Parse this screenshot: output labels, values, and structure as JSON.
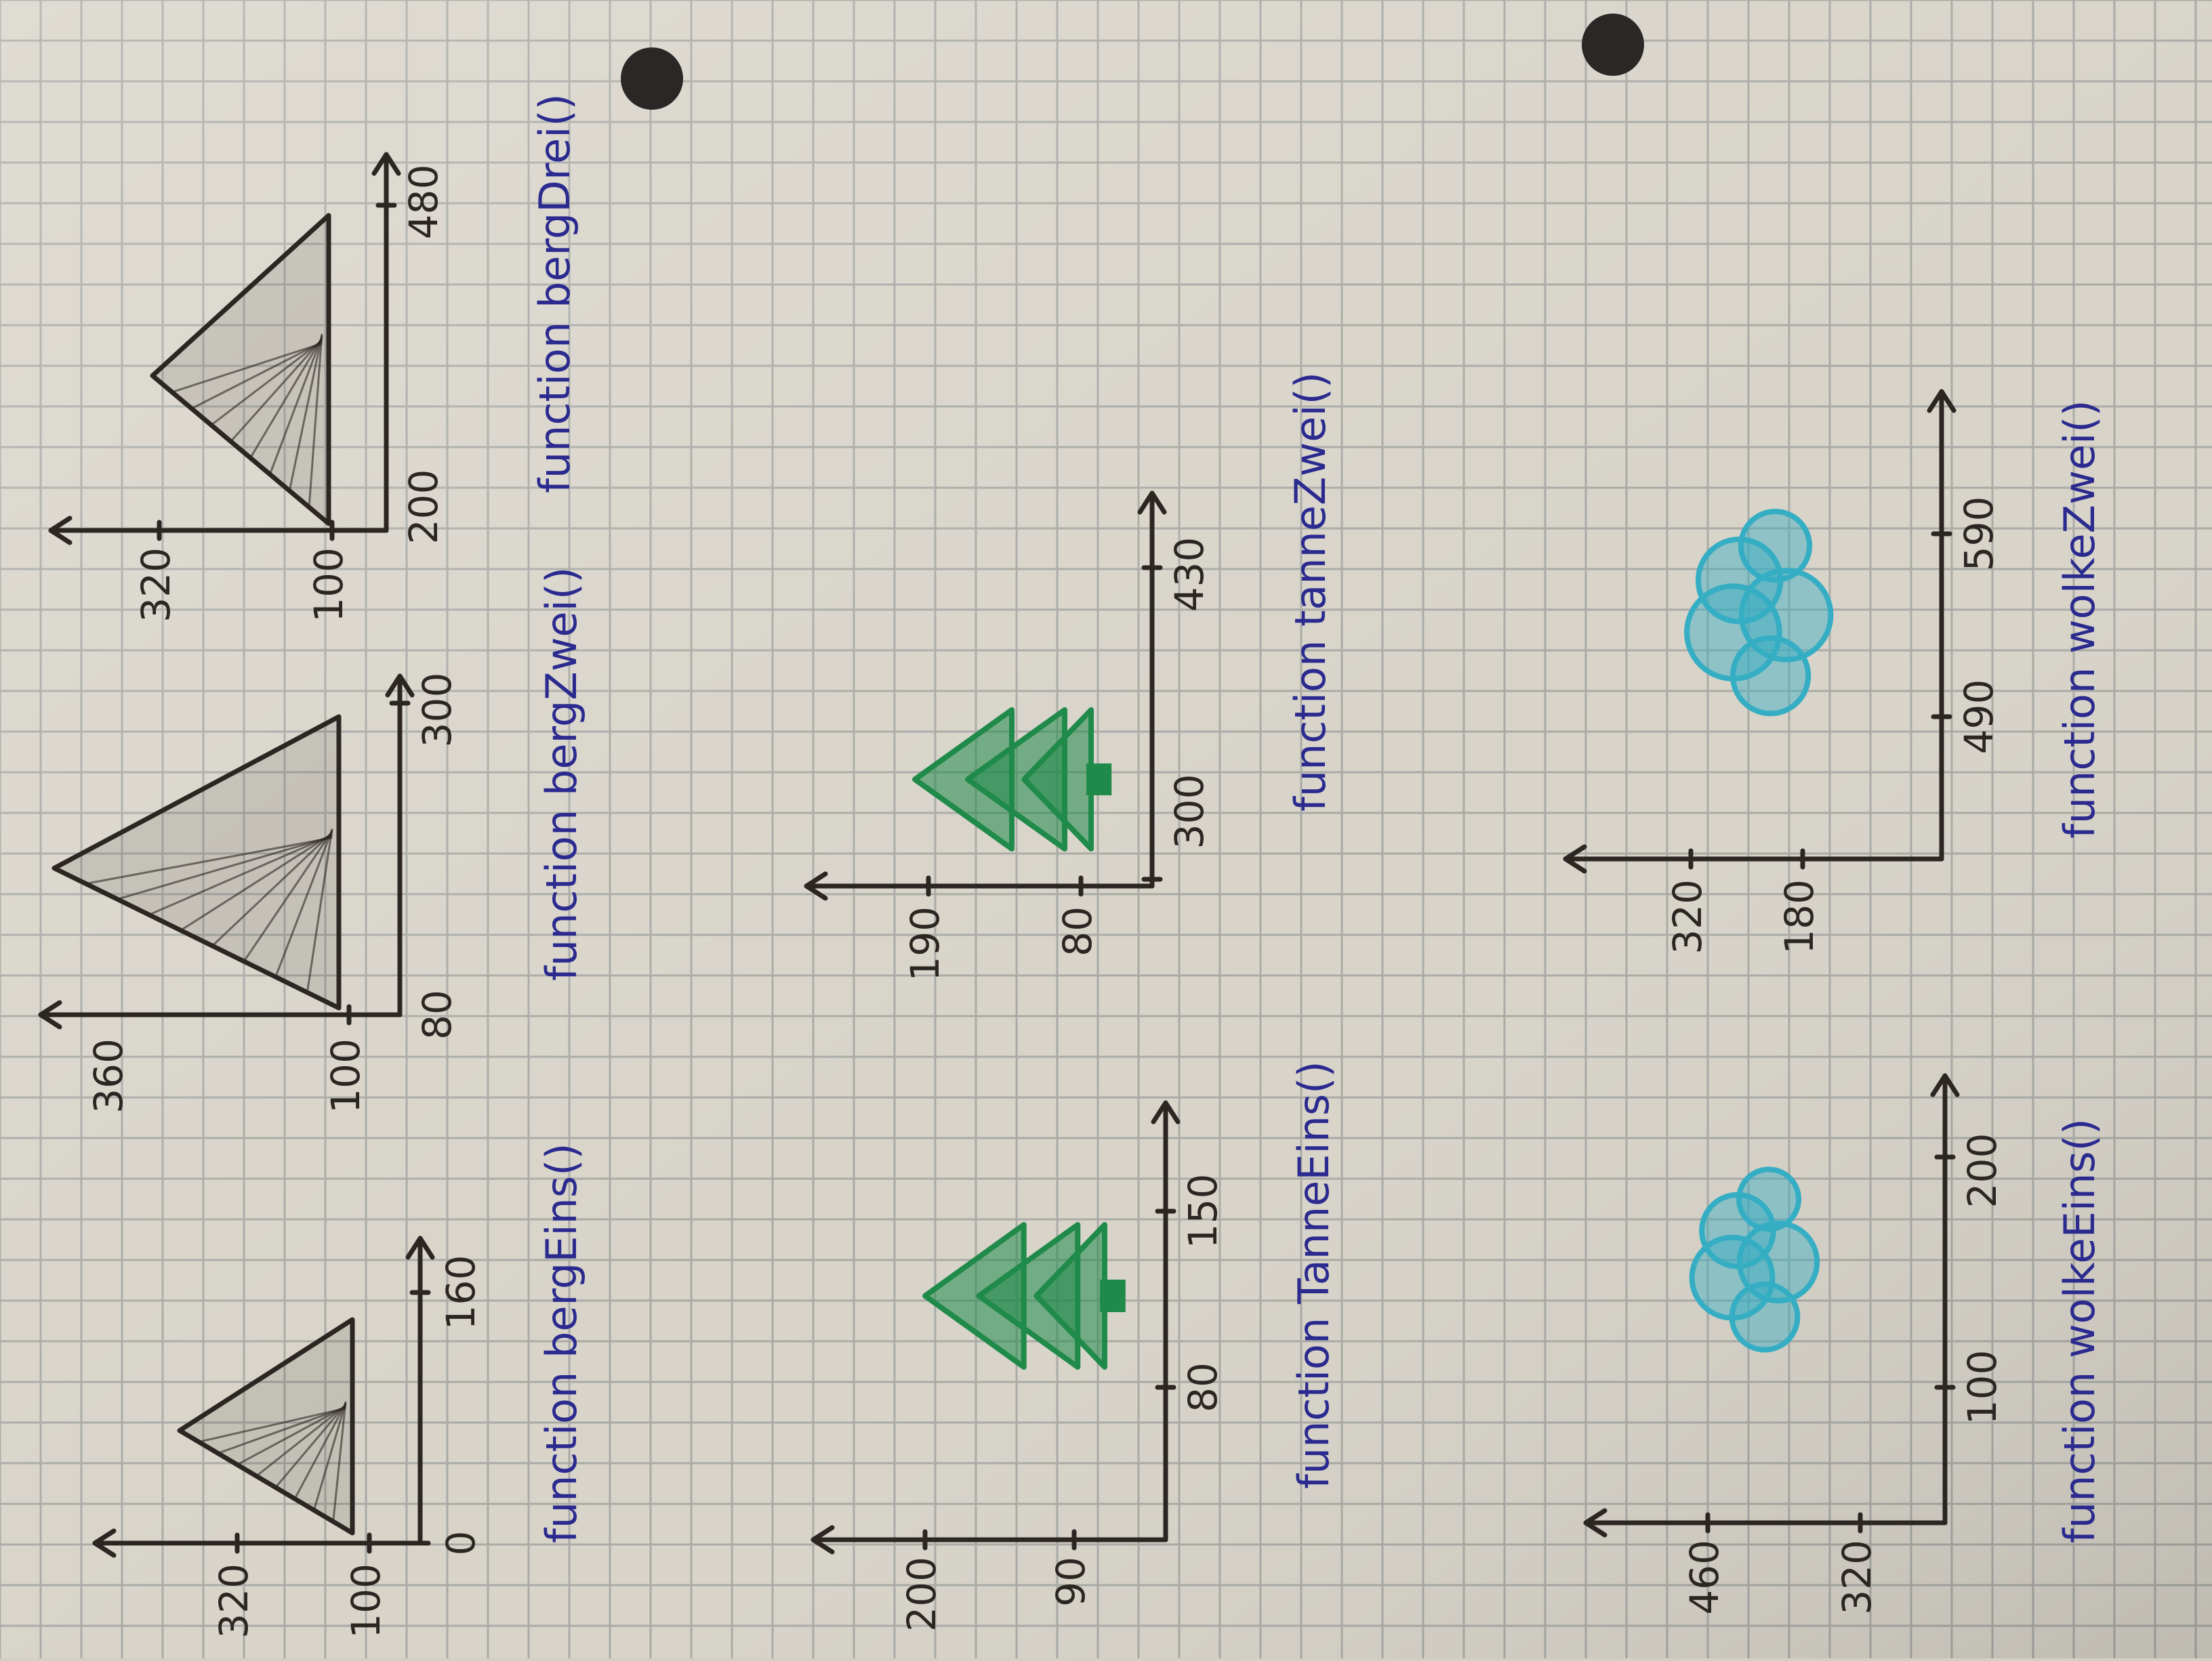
{
  "sheet": {
    "paper_color": "#d8d4ca",
    "grid_color": "#a9aaa6",
    "ink_color": "#2b2622",
    "label_color": "#2b2a8f",
    "tree_color": "#1f8a4a",
    "cloud_color": "#35aec4"
  },
  "diagrams": [
    {
      "id": "bergeins",
      "shape": "mountain-icon",
      "color": "#2b2622",
      "y_ticks": [
        "320",
        "100"
      ],
      "x_ticks": [
        "0",
        "160"
      ],
      "label": "function bergEins()"
    },
    {
      "id": "bergzwei",
      "shape": "mountain-icon",
      "color": "#2b2622",
      "y_ticks": [
        "360",
        "100"
      ],
      "x_ticks": [
        "80",
        "300"
      ],
      "label": "function bergZwei()"
    },
    {
      "id": "bergdrei",
      "shape": "mountain-icon",
      "color": "#2b2622",
      "y_ticks": [
        "320",
        "100"
      ],
      "x_ticks": [
        "200",
        "480"
      ],
      "label": "function bergDrei()"
    },
    {
      "id": "tanneeins",
      "shape": "fir-tree-icon",
      "color": "#1f8a4a",
      "y_ticks": [
        "200",
        "90"
      ],
      "x_ticks": [
        "80",
        "150"
      ],
      "label": "function TanneEins()"
    },
    {
      "id": "tannezwei",
      "shape": "fir-tree-icon",
      "color": "#1f8a4a",
      "y_ticks": [
        "190",
        "80"
      ],
      "x_ticks": [
        "300",
        "430"
      ],
      "label": "function tanneZwei()"
    },
    {
      "id": "wolkeeins",
      "shape": "cloud-icon",
      "color": "#35aec4",
      "y_ticks": [
        "460",
        "320"
      ],
      "x_ticks": [
        "100",
        "200"
      ],
      "label": "function wolkeEins()"
    },
    {
      "id": "wolkezwei",
      "shape": "cloud-icon",
      "color": "#35aec4",
      "y_ticks": [
        "320",
        "180"
      ],
      "x_ticks": [
        "490",
        "590"
      ],
      "label": "function wolkeZwei()"
    }
  ]
}
